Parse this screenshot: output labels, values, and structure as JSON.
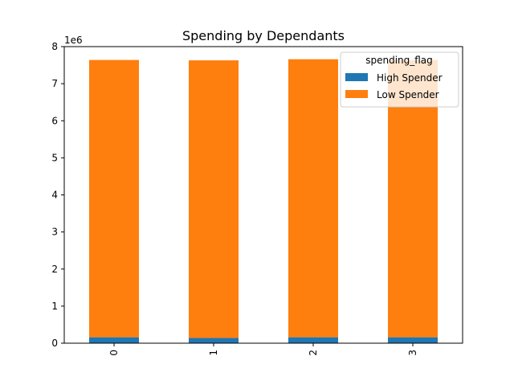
{
  "chart_data": {
    "type": "bar",
    "stacked": true,
    "title": "Spending by Dependants",
    "xlabel": "",
    "ylabel": "",
    "y_offset_label": "1e6",
    "categories": [
      "0",
      "1",
      "2",
      "3"
    ],
    "ylim": [
      0,
      8
    ],
    "yticks": [
      0,
      1,
      2,
      3,
      4,
      5,
      6,
      7,
      8
    ],
    "series": [
      {
        "name": "High Spender",
        "color": "#1f77b4",
        "values": [
          0.16,
          0.14,
          0.16,
          0.16
        ]
      },
      {
        "name": "Low Spender",
        "color": "#ff7f0e",
        "values": [
          7.48,
          7.49,
          7.5,
          7.48
        ]
      }
    ],
    "legend": {
      "title": "spending_flag",
      "placement": "top-right"
    },
    "grid": false
  }
}
